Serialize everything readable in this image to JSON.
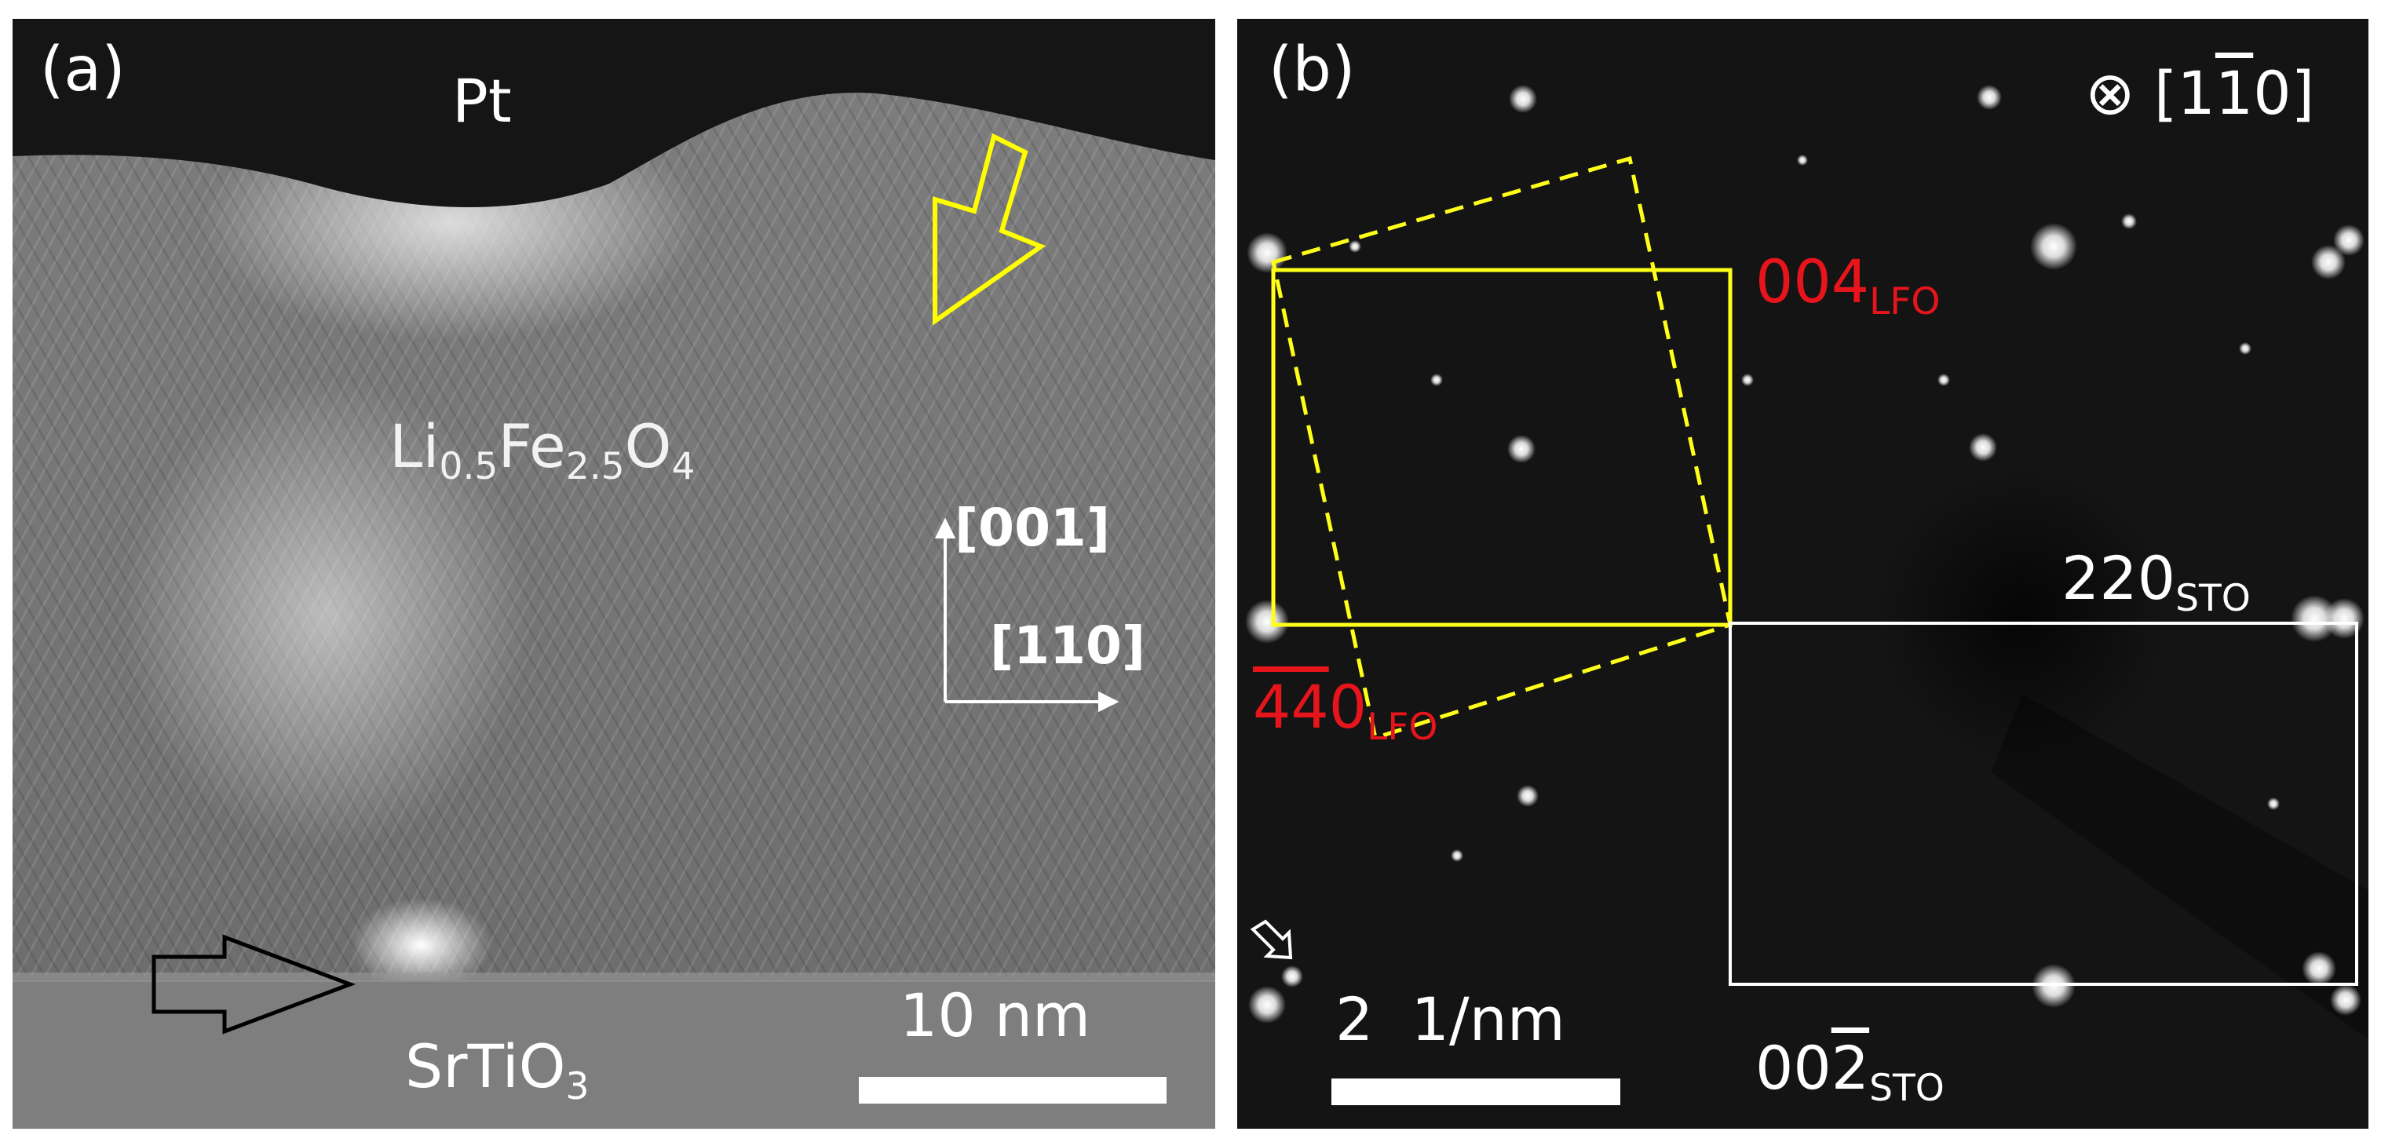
{
  "panel_a": {
    "label": "(a)",
    "top_layer": "Pt",
    "film": {
      "base1": "Li",
      "sub1": "0.5",
      "base2": "Fe",
      "sub2": "2.5",
      "base3": "O",
      "sub3": "4"
    },
    "substrate": {
      "base": "SrTiO",
      "sub": "3"
    },
    "axis_vertical": "[001]",
    "axis_horizontal": "[110]",
    "scale_label": "10 nm",
    "colors": {
      "yellow_arrow": "#ffff00",
      "black_arrow": "#000000"
    }
  },
  "panel_b": {
    "label": "(b)",
    "zone_axis": {
      "symbol": "⊗",
      "open": "[1",
      "bar_digit": "1",
      "close": "0]"
    },
    "label_004": {
      "base": "004",
      "sub": "LFO"
    },
    "label_440": {
      "bar1": "4",
      "bar2": "4",
      "rest": "0",
      "sub": "LFO"
    },
    "label_220": {
      "base": "220",
      "sub": "STO"
    },
    "label_002": {
      "base": "00",
      "bar": "2",
      "sub": "STO"
    },
    "scale_label": "2  1/nm",
    "colors": {
      "lfo_label": "#e8141c",
      "lfo_box": "#ffff1a",
      "sto_box": "#ffffff"
    }
  }
}
